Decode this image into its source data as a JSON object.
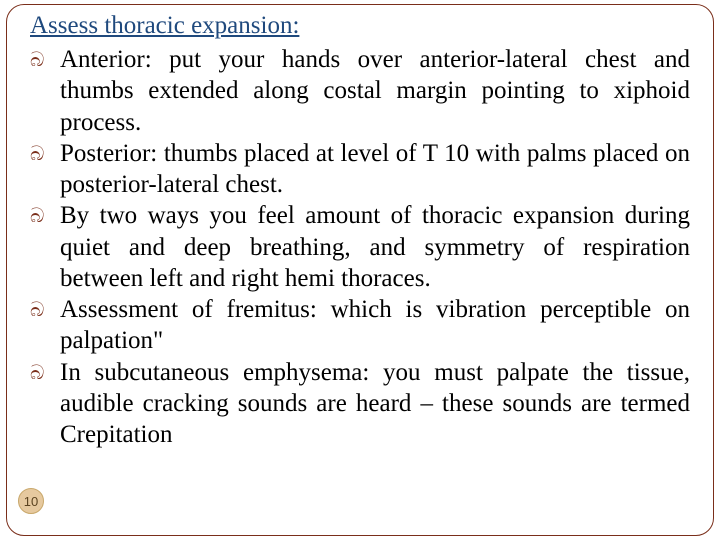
{
  "slide": {
    "heading": "Assess thoracic expansion:",
    "heading_color": "#1f497d",
    "bullet_color": "#7a2e1a",
    "bullet_glyph": "බ",
    "text_color": "#000000",
    "font_family": "Georgia, 'Times New Roman', serif",
    "heading_fontsize": 25,
    "body_fontsize": 25,
    "frame_border_color": "#7a2e1a",
    "frame_border_radius": 18,
    "background_color": "#ffffff",
    "bullets": [
      "Anterior: put your hands over anterior-lateral chest and thumbs extended along costal margin pointing to xiphoid process.",
      "Posterior: thumbs placed at level of T 10 with palms placed on posterior-lateral chest.",
      "By two ways you feel amount of thoracic expansion during quiet and deep breathing, and symmetry of respiration between left and right hemi thoraces.",
      "Assessment of fremitus: which is vibration perceptible on palpation\"",
      "In subcutaneous emphysema: you must palpate the tissue, audible cracking sounds are heard – these sounds are termed Crepitation"
    ],
    "page_number": "10",
    "badge_bg": "#e6c99f",
    "badge_border": "#c9a86b",
    "badge_text_color": "#5b4320"
  }
}
